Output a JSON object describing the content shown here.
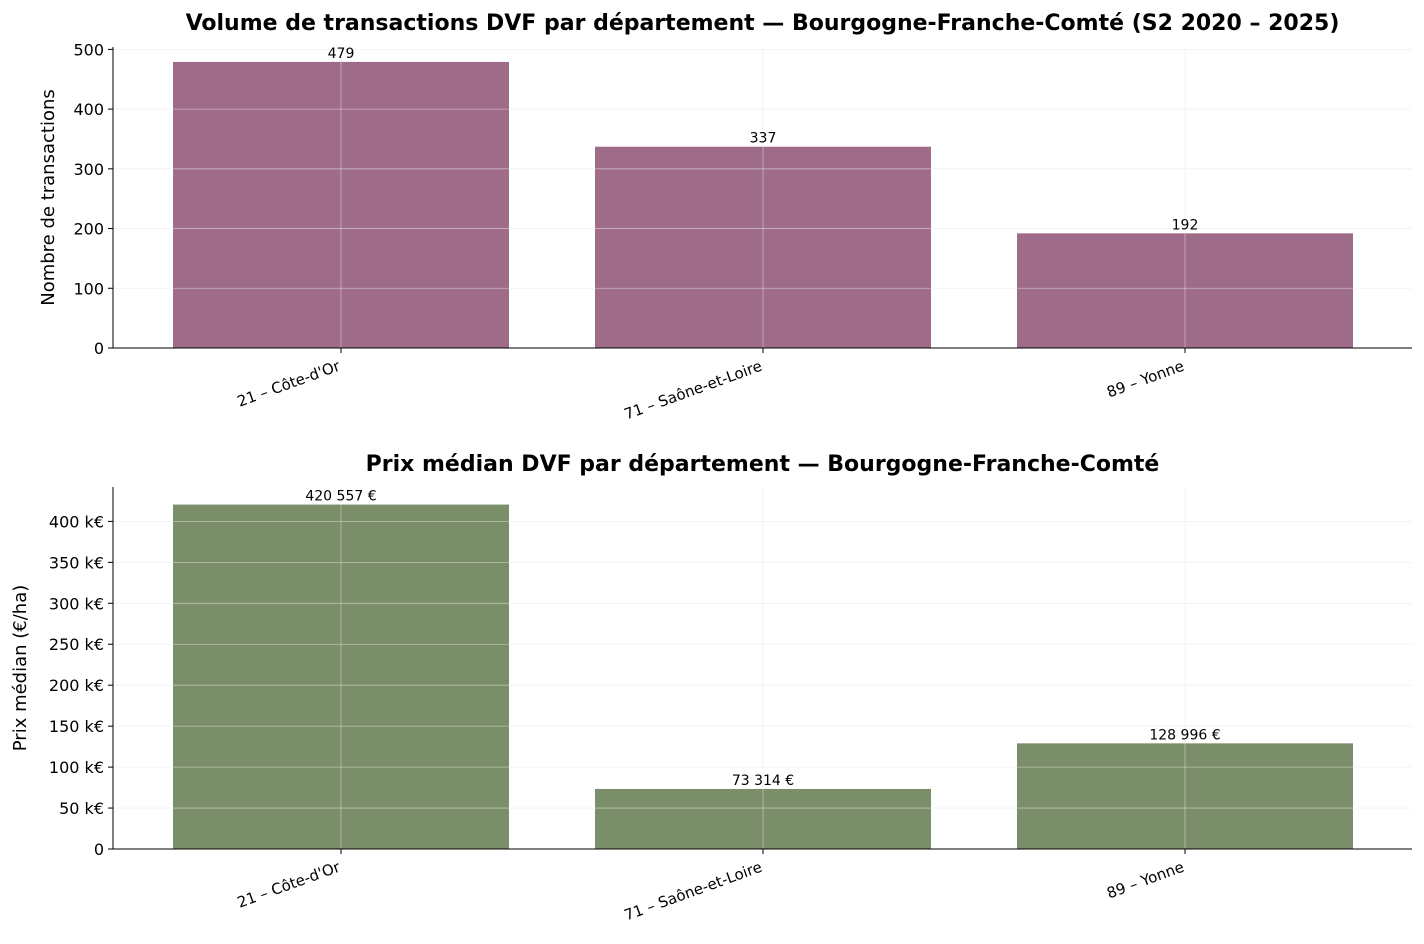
{
  "chart_data": [
    {
      "type": "bar",
      "title": "Volume de transactions DVF par département — Bourgogne-Franche-Comté (S2 2020 – 2025)",
      "xlabel": "",
      "ylabel": "Nombre de transactions",
      "categories": [
        "21 – Côte-d'Or",
        "71 – Saône-et-Loire",
        "89 – Yonne"
      ],
      "values": [
        479,
        337,
        192
      ],
      "value_labels": [
        "479",
        "337",
        "192"
      ],
      "ylim": [
        0,
        504
      ],
      "yticks": [
        0,
        100,
        200,
        300,
        400,
        500
      ],
      "ytick_labels": [
        "0",
        "100",
        "200",
        "300",
        "400",
        "500"
      ],
      "grid": true,
      "bar_color": "#9e6b88"
    },
    {
      "type": "bar",
      "title": "Prix médian DVF par département — Bourgogne-Franche-Comté",
      "xlabel": "",
      "ylabel": "Prix médian (€/ha)",
      "categories": [
        "21 – Côte-d'Or",
        "71 – Saône-et-Loire",
        "89 – Yonne"
      ],
      "values": [
        420557,
        73314,
        128996
      ],
      "value_labels": [
        "420 557 €",
        "73 314 €",
        "128 996 €"
      ],
      "ylim": [
        0,
        442000
      ],
      "yticks": [
        0,
        50000,
        100000,
        150000,
        200000,
        250000,
        300000,
        350000,
        400000
      ],
      "ytick_labels": [
        "0",
        "50 k€",
        "100 k€",
        "150 k€",
        "200 k€",
        "250 k€",
        "300 k€",
        "350 k€",
        "400 k€"
      ],
      "grid": true,
      "bar_color": "#7a8e69"
    }
  ]
}
